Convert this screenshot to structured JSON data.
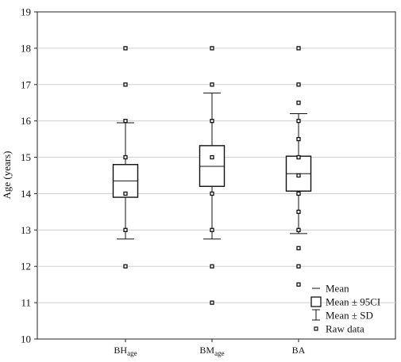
{
  "chart_data": {
    "type": "box",
    "ylabel": "Age (years)",
    "xlabel": "",
    "ylim": [
      10,
      19
    ],
    "yticks": [
      10,
      11,
      12,
      13,
      14,
      15,
      16,
      17,
      18,
      19
    ],
    "grid": "horizontal",
    "legend_position": "bottom-right",
    "categories": [
      {
        "base": "BH",
        "sub": "age"
      },
      {
        "base": "BM",
        "sub": "age"
      },
      {
        "base": "BA",
        "sub": ""
      }
    ],
    "series": [
      {
        "mean": 14.35,
        "ci95": [
          13.9,
          14.8
        ],
        "sd": [
          12.75,
          15.95
        ],
        "raw": [
          12,
          13,
          14,
          15,
          16,
          17,
          18
        ]
      },
      {
        "mean": 14.75,
        "ci95": [
          14.2,
          15.32
        ],
        "sd": [
          12.75,
          16.77
        ],
        "raw": [
          11,
          12,
          13,
          14,
          15,
          16,
          17,
          18
        ]
      },
      {
        "mean": 14.55,
        "ci95": [
          14.07,
          15.03
        ],
        "sd": [
          12.9,
          16.2
        ],
        "raw": [
          11.5,
          12,
          12.5,
          13,
          13.5,
          14,
          14.5,
          15,
          15.5,
          16,
          16.5,
          17,
          18
        ]
      }
    ],
    "legend": [
      {
        "symbol": "mean",
        "label": "Mean"
      },
      {
        "symbol": "box",
        "label": "Mean ± 95CI"
      },
      {
        "symbol": "whisker",
        "label": "Mean ± SD"
      },
      {
        "symbol": "raw",
        "label": "Raw data"
      }
    ]
  }
}
